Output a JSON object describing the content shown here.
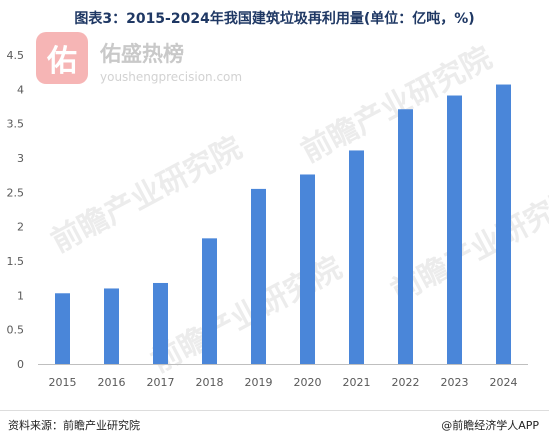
{
  "header": {
    "title": "图表3：2015-2024年我国建筑垃圾再利用量(单位：亿吨，%)"
  },
  "watermark": {
    "logo_char": "佑",
    "name": "佑盛热榜",
    "url": "youshengprecision.com",
    "brand": "前瞻产业研究院"
  },
  "footer": {
    "source": "资料来源：前瞻产业研究院",
    "credit": "@前瞻经济学人APP"
  },
  "colors": {
    "bar": "#4a86d9",
    "axis": "#bfbfbf",
    "text": "#595959"
  },
  "chart_data": {
    "type": "bar",
    "categories": [
      "2015",
      "2016",
      "2017",
      "2018",
      "2019",
      "2020",
      "2021",
      "2022",
      "2023",
      "2024"
    ],
    "values": [
      1.03,
      1.1,
      1.18,
      1.83,
      2.55,
      2.76,
      3.11,
      3.71,
      3.91,
      4.07
    ],
    "title": "图表3：2015-2024年我国建筑垃圾再利用量(单位：亿吨，%)",
    "xlabel": "",
    "ylabel": "",
    "ylim": [
      0,
      4.5
    ],
    "yticks": [
      "0",
      "0.5",
      "1",
      "1.5",
      "2",
      "2.5",
      "3",
      "3.5",
      "4",
      "4.5"
    ],
    "grid": false,
    "legend": "none"
  }
}
